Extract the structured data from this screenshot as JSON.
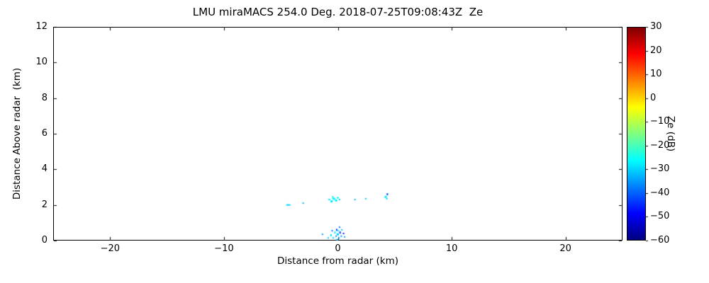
{
  "chart_data": {
    "type": "scatter",
    "title": "LMU miraMACS 254.0 Deg. 2018-07-25T09:08:43Z  Ze",
    "xlabel": "Distance from radar (km)",
    "ylabel": "Distance Above radar  (km)",
    "xlim": [
      -25,
      25
    ],
    "ylim": [
      0,
      12
    ],
    "grid": false,
    "background": "#ffffff",
    "frame_color": "#000000",
    "xticks": {
      "values": [
        -20,
        -10,
        0,
        10,
        20
      ],
      "labels": [
        "−20",
        "−10",
        "0",
        "10",
        "20"
      ]
    },
    "yticks": {
      "values": [
        0,
        2,
        4,
        6,
        8,
        10,
        12
      ],
      "labels": [
        "0",
        "2",
        "4",
        "6",
        "8",
        "10",
        "12"
      ]
    },
    "colorbar": {
      "label": "Ze (dB)",
      "min": -60,
      "max": 30,
      "ticks": {
        "values": [
          30,
          20,
          10,
          0,
          -10,
          -20,
          -30,
          -40,
          -50,
          -60
        ],
        "labels": [
          "30",
          "20",
          "10",
          "0",
          "−10",
          "−20",
          "−30",
          "−40",
          "−50",
          "−60"
        ]
      },
      "colormap": "jet",
      "stops": [
        {
          "pos": 0.0,
          "color": "#00007f"
        },
        {
          "pos": 0.125,
          "color": "#0000ff"
        },
        {
          "pos": 0.375,
          "color": "#00ffff"
        },
        {
          "pos": 0.625,
          "color": "#ffff00"
        },
        {
          "pos": 0.875,
          "color": "#ff0000"
        },
        {
          "pos": 1.0,
          "color": "#7f0000"
        }
      ]
    },
    "points_format": "[x_km, y_km, ze_dB, w_px, h_px]",
    "points": [
      [
        -4.35,
        2.0,
        -30,
        6,
        2
      ],
      [
        -3.05,
        2.1,
        -33,
        2,
        2
      ],
      [
        -0.75,
        2.3,
        -27,
        3,
        2
      ],
      [
        -0.55,
        2.2,
        -29,
        3,
        3
      ],
      [
        -0.45,
        2.45,
        -30,
        2,
        2
      ],
      [
        -0.35,
        2.35,
        -26,
        4,
        3
      ],
      [
        -0.15,
        2.25,
        -28,
        3,
        3
      ],
      [
        0.0,
        2.4,
        -27,
        3,
        2
      ],
      [
        0.15,
        2.3,
        -31,
        2,
        2
      ],
      [
        1.5,
        2.3,
        -33,
        2,
        2
      ],
      [
        2.45,
        2.35,
        -31,
        2,
        2
      ],
      [
        4.2,
        2.45,
        -28,
        3,
        3
      ],
      [
        4.35,
        2.6,
        -42,
        2,
        3
      ],
      [
        4.3,
        2.35,
        -30,
        2,
        2
      ],
      [
        -1.35,
        0.35,
        -36,
        2,
        2
      ],
      [
        -0.85,
        0.15,
        -31,
        2,
        2
      ],
      [
        -0.6,
        0.3,
        -29,
        2,
        3
      ],
      [
        -0.5,
        0.55,
        -39,
        2,
        2
      ],
      [
        -0.4,
        0.15,
        -31,
        2,
        2
      ],
      [
        -0.25,
        0.45,
        -27,
        2,
        3
      ],
      [
        -0.15,
        0.25,
        -36,
        2,
        2
      ],
      [
        -0.1,
        0.6,
        -42,
        2,
        3
      ],
      [
        -0.05,
        0.05,
        -33,
        3,
        2
      ],
      [
        0.0,
        0.35,
        -30,
        3,
        3
      ],
      [
        0.05,
        0.55,
        -28,
        2,
        2
      ],
      [
        0.1,
        0.15,
        -34,
        2,
        2
      ],
      [
        0.15,
        0.75,
        -39,
        2,
        2
      ],
      [
        0.2,
        0.45,
        -44,
        2,
        3
      ],
      [
        0.3,
        0.25,
        -36,
        2,
        2
      ],
      [
        0.35,
        0.6,
        -31,
        2,
        2
      ],
      [
        0.5,
        0.4,
        -46,
        2,
        2
      ],
      [
        0.6,
        0.2,
        -34,
        2,
        2
      ]
    ]
  }
}
